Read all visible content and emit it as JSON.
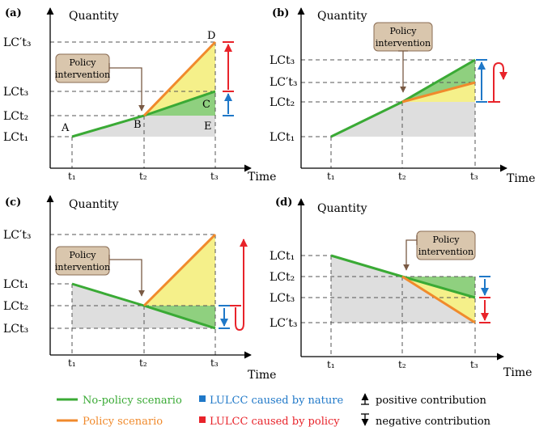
{
  "panels": [
    {
      "id": "a",
      "tag": "(a)",
      "y_title": "Quantity",
      "x_title": "Time",
      "x_ticks": [
        "t₁",
        "t₂",
        "t₃"
      ],
      "y_labels": [
        "LC′t₃",
        "LCt₃",
        "LCt₂",
        "LCt₁"
      ],
      "policy_label": [
        "Policy",
        "intervention"
      ],
      "point_labels": [
        "A",
        "B",
        "C",
        "D",
        "E"
      ]
    },
    {
      "id": "b",
      "tag": "(b)",
      "y_title": "Quantity",
      "x_title": "Time",
      "x_ticks": [
        "t₁",
        "t₂",
        "t₃"
      ],
      "y_labels": [
        "LCt₃",
        "LC′t₃",
        "LCt₂",
        "LCt₁"
      ],
      "policy_label": [
        "Policy",
        "intervention"
      ]
    },
    {
      "id": "c",
      "tag": "(c)",
      "y_title": "Quantity",
      "x_title": "Time",
      "x_ticks": [
        "t₁",
        "t₂",
        "t₃"
      ],
      "y_labels": [
        "LC′t₃",
        "LCt₁",
        "LCt₂",
        "LCt₃"
      ],
      "policy_label": [
        "Policy",
        "intervention"
      ]
    },
    {
      "id": "d",
      "tag": "(d)",
      "y_title": "Quantity",
      "x_title": "Time",
      "x_ticks": [
        "t₁",
        "t₂",
        "t₃"
      ],
      "y_labels": [
        "LCt₁",
        "LCt₂",
        "LCt₃",
        "LC′t₃"
      ],
      "policy_label": [
        "Policy",
        "intervention"
      ]
    }
  ],
  "legend": {
    "no_policy": "No-policy scenario",
    "policy": "Policy scenario",
    "nature": "LULCC caused by nature",
    "by_policy": "LULCC caused by policy",
    "positive": "positive contribution",
    "negative": "negative contribution"
  },
  "colors": {
    "no_policy": "#3aaa35",
    "policy": "#f08a2c",
    "nature": "#1f78c8",
    "by_policy": "#e8232a",
    "gray_fill": "#dedede",
    "yellow_fill": "#f5f08a",
    "green_fill": "#8fd07f",
    "policy_box": "#d9c6ad"
  }
}
